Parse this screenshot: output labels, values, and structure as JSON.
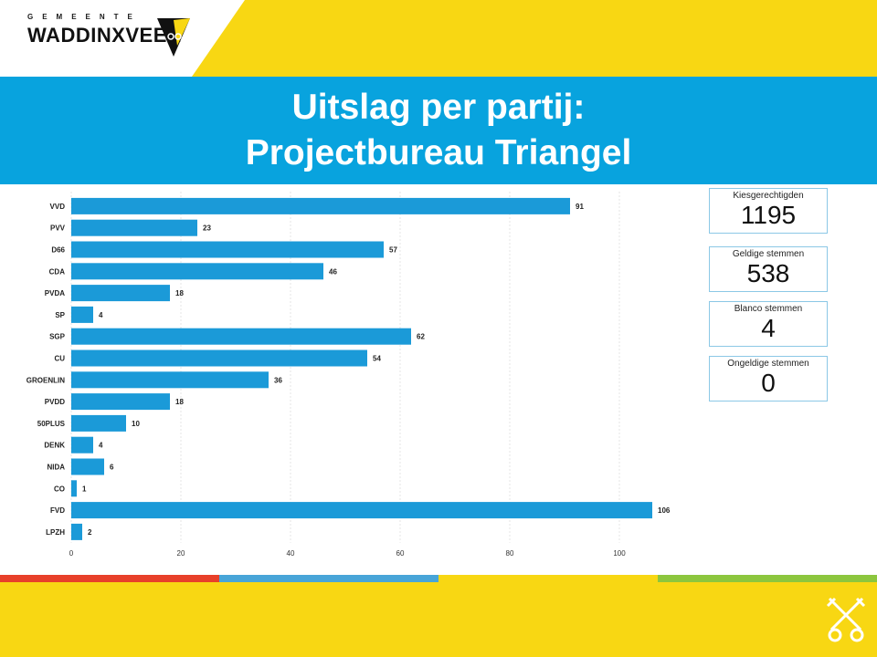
{
  "header": {
    "logo_subtitle": "GEMEENTE",
    "logo_title": "WADDINXVEEN",
    "title_line1": "Uitslag per partij:",
    "title_line2": "Projectbureau Triangel"
  },
  "colors": {
    "bar": "#1b9ad8",
    "banner": "#08a3de",
    "yellow": "#f8d713",
    "stripe_colors": [
      "#e8402a",
      "#48a5d8",
      "#f8d713",
      "#8cc63e"
    ]
  },
  "icons": [
    "waddinxveen-logo-icon",
    "keys-crest-icon"
  ],
  "stats": [
    {
      "label": "Kiesgerechtigden",
      "value": "1195"
    },
    {
      "label": "Geldige stemmen",
      "value": "538"
    },
    {
      "label": "Blanco stemmen",
      "value": "4"
    },
    {
      "label": "Ongeldige stemmen",
      "value": "0"
    }
  ],
  "chart_data": {
    "type": "bar",
    "orientation": "horizontal",
    "categories": [
      "VVD",
      "PVV",
      "D66",
      "CDA",
      "PVDA",
      "SP",
      "SGP",
      "CU",
      "GROENLIN",
      "PVDD",
      "50PLUS",
      "DENK",
      "NIDA",
      "CO",
      "FVD",
      "LPZH"
    ],
    "values": [
      91,
      23,
      57,
      46,
      18,
      4,
      62,
      54,
      36,
      18,
      10,
      4,
      6,
      1,
      106,
      2
    ],
    "xlim": [
      0,
      108
    ],
    "xticks": [
      0,
      20,
      40,
      60,
      80,
      100
    ],
    "grid": true,
    "title": "",
    "xlabel": "",
    "ylabel": ""
  }
}
